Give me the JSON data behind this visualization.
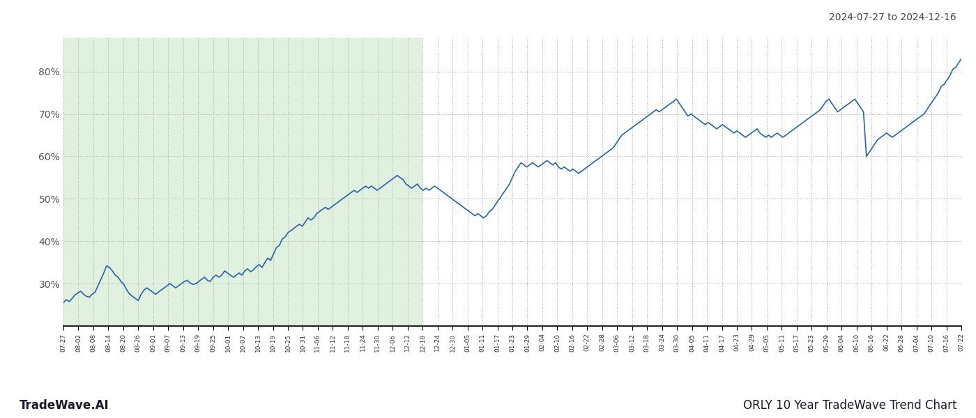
{
  "title_top_right": "2024-07-27 to 2024-12-16",
  "title_bottom_left": "TradeWave.AI",
  "title_bottom_right": "ORLY 10 Year TradeWave Trend Chart",
  "line_color": "#2563a8",
  "line_width": 1.2,
  "shaded_region_color": "#c8e6c8",
  "shaded_region_alpha": 0.55,
  "background_color": "#ffffff",
  "grid_color": "#aaaaaa",
  "grid_linestyle": ":",
  "ylim": [
    20,
    88
  ],
  "yticks": [
    30,
    40,
    50,
    60,
    70,
    80
  ],
  "x_labels": [
    "07-27",
    "08-02",
    "08-08",
    "08-14",
    "08-20",
    "08-26",
    "09-01",
    "09-07",
    "09-13",
    "09-19",
    "09-25",
    "10-01",
    "10-07",
    "10-13",
    "10-19",
    "10-25",
    "10-31",
    "11-06",
    "11-12",
    "11-18",
    "11-24",
    "11-30",
    "12-06",
    "12-12",
    "12-18",
    "12-24",
    "12-30",
    "01-05",
    "01-11",
    "01-17",
    "01-23",
    "01-29",
    "02-04",
    "02-10",
    "02-16",
    "02-22",
    "02-28",
    "03-06",
    "03-12",
    "03-18",
    "03-24",
    "03-30",
    "04-05",
    "04-11",
    "04-17",
    "04-23",
    "04-29",
    "05-05",
    "05-11",
    "05-17",
    "05-23",
    "05-29",
    "06-04",
    "06-10",
    "06-16",
    "06-22",
    "06-28",
    "07-04",
    "07-10",
    "07-16",
    "07-22"
  ],
  "shade_start_label": "07-27",
  "shade_end_label": "12-18",
  "y_values": [
    25.5,
    26.2,
    25.8,
    26.5,
    27.3,
    27.8,
    28.2,
    27.5,
    27.0,
    26.8,
    27.5,
    28.0,
    29.5,
    31.0,
    32.5,
    34.2,
    33.8,
    33.0,
    32.0,
    31.5,
    30.5,
    29.8,
    28.5,
    27.5,
    27.0,
    26.5,
    26.0,
    27.5,
    28.5,
    29.0,
    28.5,
    28.0,
    27.5,
    28.0,
    28.5,
    29.0,
    29.5,
    30.0,
    29.5,
    29.0,
    29.5,
    30.0,
    30.5,
    30.8,
    30.2,
    29.8,
    30.0,
    30.5,
    31.0,
    31.5,
    30.8,
    30.5,
    31.5,
    32.0,
    31.5,
    32.0,
    33.0,
    32.5,
    32.0,
    31.5,
    32.0,
    32.5,
    32.0,
    33.0,
    33.5,
    32.8,
    33.2,
    34.0,
    34.5,
    33.8,
    35.0,
    36.0,
    35.5,
    37.0,
    38.5,
    39.0,
    40.5,
    41.0,
    42.0,
    42.5,
    43.0,
    43.5,
    44.0,
    43.5,
    44.5,
    45.5,
    45.0,
    45.5,
    46.5,
    47.0,
    47.5,
    48.0,
    47.5,
    48.0,
    48.5,
    49.0,
    49.5,
    50.0,
    50.5,
    51.0,
    51.5,
    52.0,
    51.5,
    52.0,
    52.5,
    53.0,
    52.5,
    53.0,
    52.5,
    52.0,
    52.5,
    53.0,
    53.5,
    54.0,
    54.5,
    55.0,
    55.5,
    55.0,
    54.5,
    53.5,
    53.0,
    52.5,
    53.0,
    53.5,
    52.5,
    52.0,
    52.5,
    52.0,
    52.5,
    53.0,
    52.5,
    52.0,
    51.5,
    51.0,
    50.5,
    50.0,
    49.5,
    49.0,
    48.5,
    48.0,
    47.5,
    47.0,
    46.5,
    46.0,
    46.5,
    46.0,
    45.5,
    46.0,
    47.0,
    47.5,
    48.5,
    49.5,
    50.5,
    51.5,
    52.5,
    53.5,
    55.0,
    56.5,
    57.5,
    58.5,
    58.0,
    57.5,
    58.0,
    58.5,
    58.0,
    57.5,
    58.0,
    58.5,
    59.0,
    58.5,
    58.0,
    58.5,
    57.5,
    57.0,
    57.5,
    57.0,
    56.5,
    57.0,
    56.5,
    56.0,
    56.5,
    57.0,
    57.5,
    58.0,
    58.5,
    59.0,
    59.5,
    60.0,
    60.5,
    61.0,
    61.5,
    62.0,
    63.0,
    64.0,
    65.0,
    65.5,
    66.0,
    66.5,
    67.0,
    67.5,
    68.0,
    68.5,
    69.0,
    69.5,
    70.0,
    70.5,
    71.0,
    70.5,
    71.0,
    71.5,
    72.0,
    72.5,
    73.0,
    73.5,
    72.5,
    71.5,
    70.5,
    69.5,
    70.0,
    69.5,
    69.0,
    68.5,
    68.0,
    67.5,
    68.0,
    67.5,
    67.0,
    66.5,
    67.0,
    67.5,
    67.0,
    66.5,
    66.0,
    65.5,
    66.0,
    65.5,
    65.0,
    64.5,
    65.0,
    65.5,
    66.0,
    66.5,
    65.5,
    65.0,
    64.5,
    65.0,
    64.5,
    65.0,
    65.5,
    65.0,
    64.5,
    65.0,
    65.5,
    66.0,
    66.5,
    67.0,
    67.5,
    68.0,
    68.5,
    69.0,
    69.5,
    70.0,
    70.5,
    71.0,
    72.0,
    73.0,
    73.5,
    72.5,
    71.5,
    70.5,
    71.0,
    71.5,
    72.0,
    72.5,
    73.0,
    73.5,
    72.5,
    71.5,
    70.5,
    60.0,
    61.0,
    62.0,
    63.0,
    64.0,
    64.5,
    65.0,
    65.5,
    65.0,
    64.5,
    65.0,
    65.5,
    66.0,
    66.5,
    67.0,
    67.5,
    68.0,
    68.5,
    69.0,
    69.5,
    70.0,
    71.0,
    72.0,
    73.0,
    74.0,
    75.0,
    76.5,
    77.0,
    78.0,
    79.0,
    80.5,
    81.0,
    82.0,
    83.0
  ]
}
